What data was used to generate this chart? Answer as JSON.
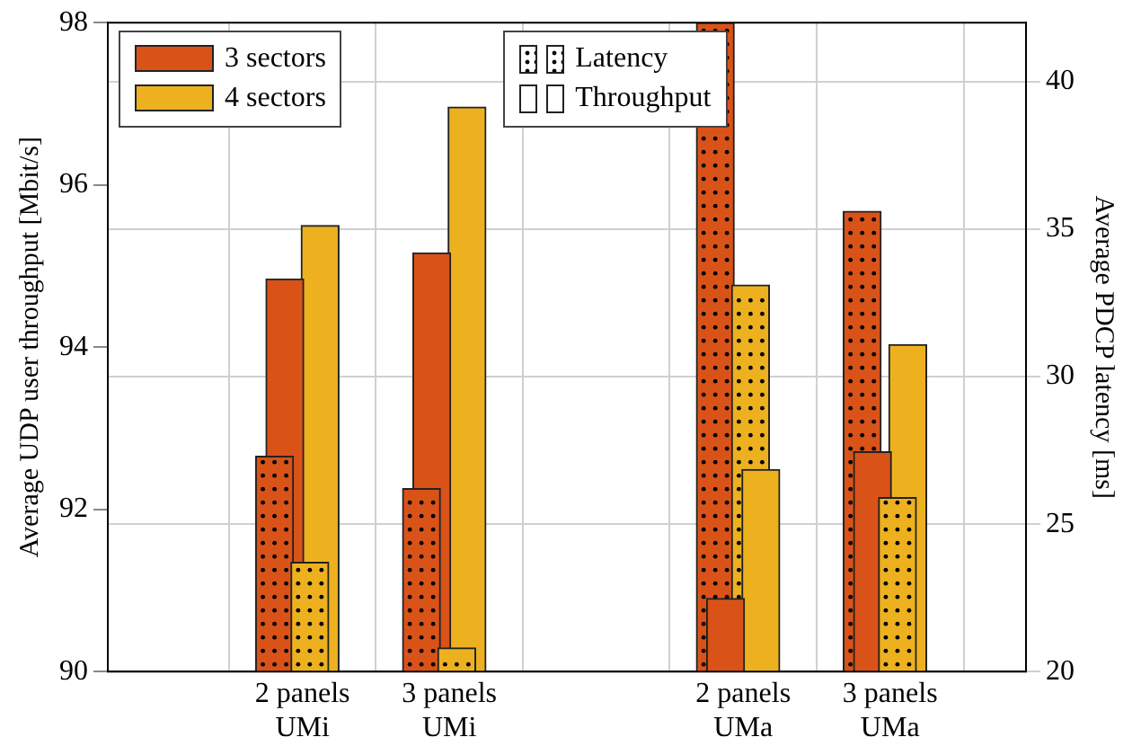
{
  "chart_data": {
    "type": "bar",
    "ylabel": "Average UDP user throughput [Mbit/s]",
    "y2label": "Average PDCP latency [ms]",
    "categories": [
      "2 panels\nUMi",
      "3 panels\nUMi",
      null,
      "2 panels\nUMa",
      "3 panels\nUMa"
    ],
    "series": [
      {
        "name": "3 sectors",
        "color": "#d95319",
        "values": [
          94.84,
          95.16,
          null,
          90.9,
          92.71
        ]
      },
      {
        "name": "4 sectors",
        "color": "#edb120",
        "values": [
          95.5,
          96.96,
          null,
          92.49,
          94.03
        ]
      },
      {
        "color": "#d95319",
        "axis": "y2",
        "values": [
          27.3,
          26.2,
          null,
          42,
          35.6
        ]
      },
      {
        "color": "#edb120",
        "axis": "y2",
        "values": [
          23.7,
          20.8,
          null,
          33.1,
          25.9
        ]
      }
    ],
    "ylim": [
      90,
      98
    ],
    "yticks": [
      90,
      92,
      94,
      96,
      98
    ],
    "y2lim": [
      20,
      42
    ],
    "y2ticks": [
      20,
      25,
      30,
      35,
      40
    ],
    "annotations": [
      "Latency",
      "Throughput"
    ],
    "grid": true,
    "legend": "top left"
  }
}
